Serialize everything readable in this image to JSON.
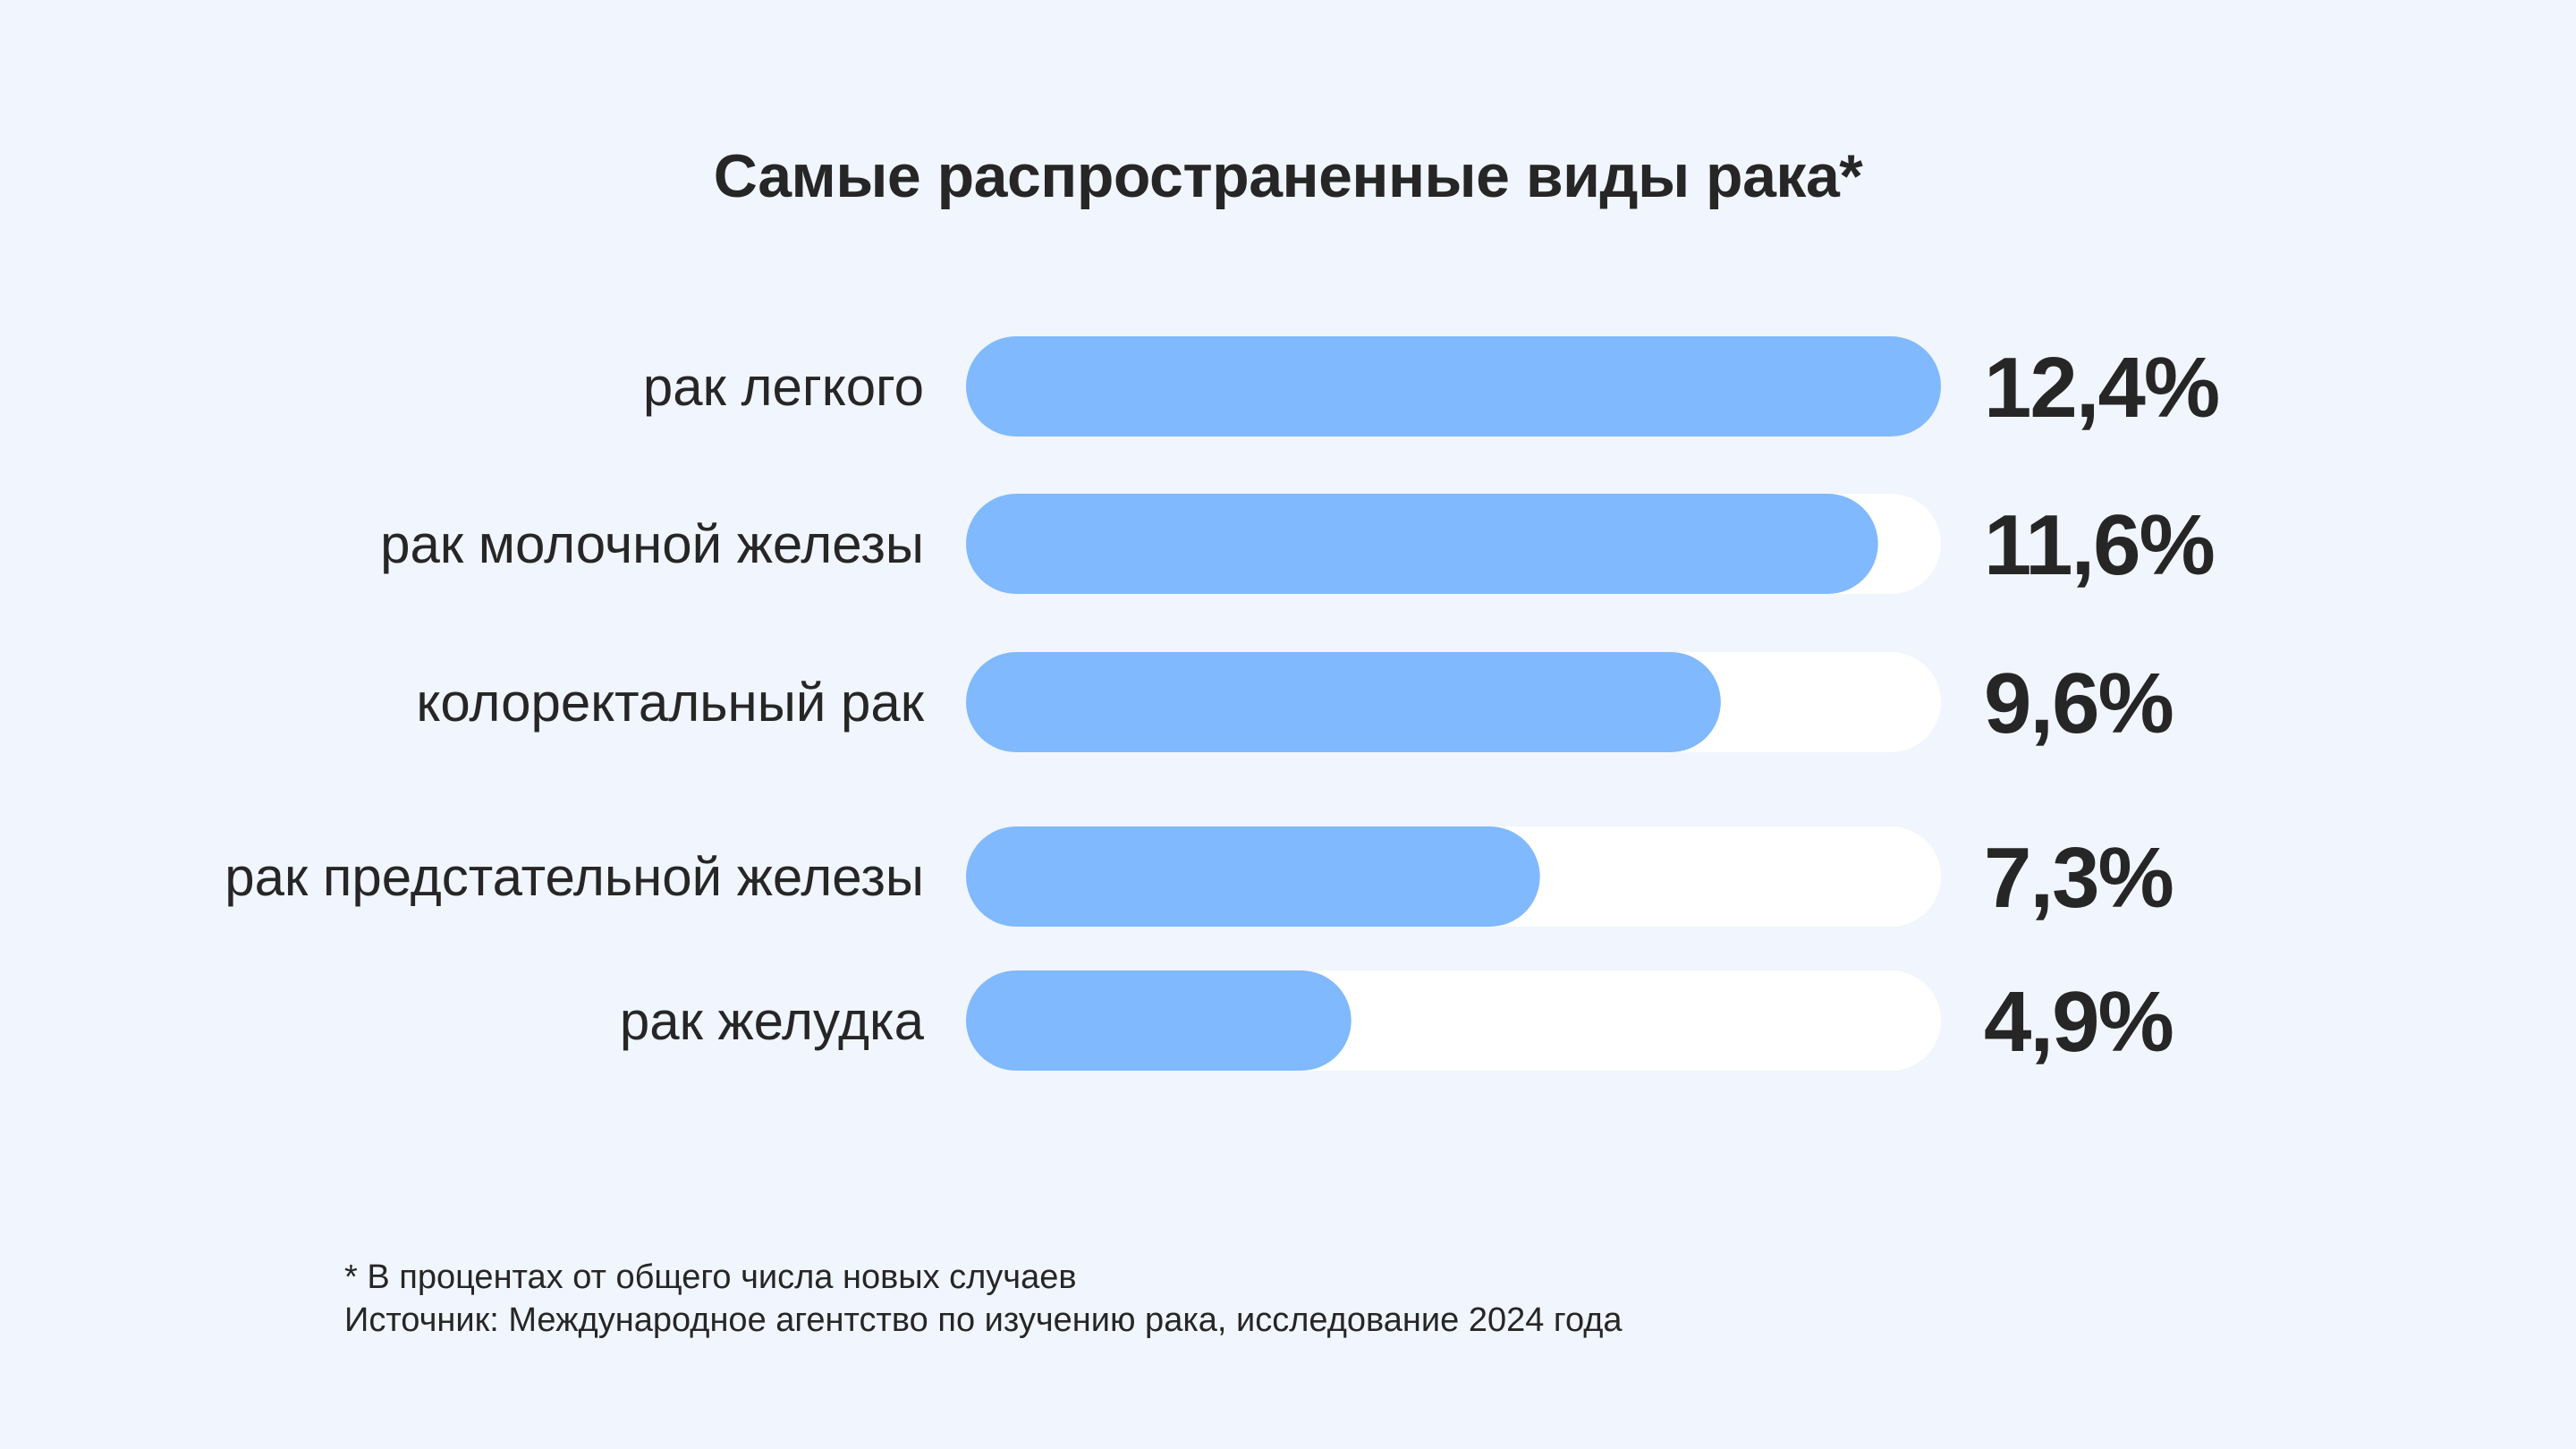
{
  "title": "Самые распространенные виды рака*",
  "chart_data": {
    "type": "bar",
    "orientation": "horizontal",
    "categories": [
      "рак легкого",
      "рак молочной железы",
      "колоректальный рак",
      "рак предстательной железы",
      "рак желудка"
    ],
    "values": [
      12.4,
      11.6,
      9.6,
      7.3,
      4.9
    ],
    "value_labels": [
      "12,4%",
      "11,6%",
      "9,6%",
      "7,3%",
      "4,9%"
    ],
    "xlim": [
      0,
      12.4
    ],
    "grid": false,
    "legend": "none"
  },
  "footnote": {
    "note": "* В процентах от общего числа новых случаев",
    "source": "Источник: Международное агентство по изучению рака, исследование 2024 года"
  },
  "colors": {
    "background": "#f1f5fd",
    "bar_fill": "#80b9fd",
    "bar_track": "#ffffff",
    "text": "#262626"
  }
}
